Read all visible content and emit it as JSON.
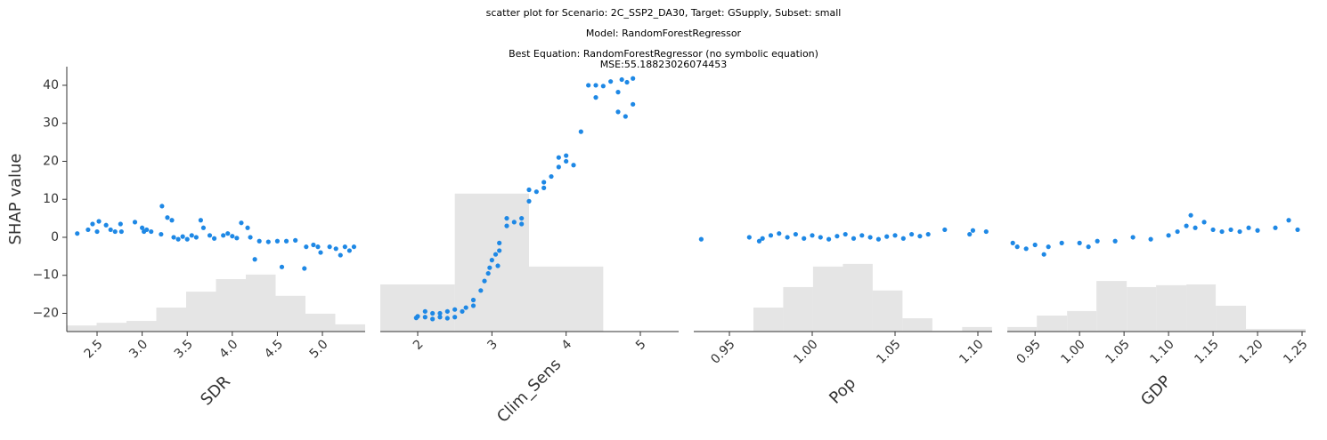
{
  "figure": {
    "title_lines": [
      "scatter plot for Scenario: 2C_SSP2_DA30, Target: GSupply, Subset: small",
      "Model: RandomForestRegressor",
      "Best Equation: RandomForestRegressor (no symbolic equation)",
      "MSE:55.18823026074453"
    ]
  },
  "chart_data": [
    {
      "type": "scatter",
      "xlabel": "SDR",
      "ylabel": "SHAP value",
      "color": "#1e88e5",
      "xlim": [
        2.164,
        5.474
      ],
      "ylim": [
        -24.8,
        44.9
      ],
      "xticks": [
        2.5,
        {
          "value": 3.0,
          "label": "3.0"
        },
        3.5,
        {
          "value": 4.0,
          "label": "4.0"
        },
        4.5,
        {
          "value": 5.0,
          "label": "5.0"
        }
      ],
      "yticks": [
        {
          "value": -20,
          "label": "−20"
        },
        {
          "value": -10,
          "label": "−10"
        },
        0,
        10,
        20,
        30,
        40
      ],
      "x": [
        2.28,
        2.4,
        2.45,
        2.5,
        2.52,
        2.6,
        2.65,
        2.7,
        2.76,
        2.77,
        2.92,
        3.0,
        3.02,
        3.05,
        3.1,
        3.22,
        3.21,
        3.28,
        3.33,
        3.35,
        3.4,
        3.45,
        3.5,
        3.55,
        3.6,
        3.65,
        3.68,
        3.75,
        3.8,
        3.9,
        3.95,
        4.0,
        4.05,
        4.1,
        4.17,
        4.2,
        4.25,
        4.3,
        4.4,
        4.5,
        4.55,
        4.6,
        4.7,
        4.8,
        4.82,
        4.9,
        4.95,
        4.98,
        5.08,
        5.15,
        5.2,
        5.25,
        5.3,
        5.35
      ],
      "values": [
        1,
        2,
        3.5,
        1.5,
        4.2,
        3.2,
        2,
        1.5,
        3.5,
        1.5,
        4,
        2.5,
        1.5,
        2,
        1.5,
        8.2,
        0.8,
        5.2,
        4.5,
        0,
        -0.5,
        0.2,
        -0.5,
        0.5,
        0,
        4.5,
        2.5,
        0.5,
        -0.3,
        0.5,
        1,
        0.3,
        -0.2,
        3.8,
        2.5,
        0,
        -5.8,
        -1,
        -1.2,
        -1,
        -7.8,
        -1,
        -0.8,
        -8.2,
        -2.5,
        -2,
        -2.5,
        -4,
        -2.5,
        -3,
        -4.7,
        -2.5,
        -3.5,
        -2.5
      ],
      "histogram": {
        "color": "#e5e5e5",
        "bins": [
          2.164,
          2.495,
          2.826,
          3.157,
          3.488,
          3.819,
          4.15,
          4.481,
          4.812,
          5.143,
          5.474
        ],
        "counts": [
          -23.2,
          -22.5,
          -22.0,
          -18.5,
          -14.3,
          -11.0,
          -9.8,
          -15.4,
          -20.1,
          -22.9
        ]
      }
    },
    {
      "type": "scatter",
      "xlabel": "Clim_Sens",
      "color": "#1e88e5",
      "xlim": [
        1.496,
        5.516
      ],
      "ylim": [
        -24.8,
        44.9
      ],
      "xticks": [
        2,
        3,
        4,
        5
      ],
      "x": [
        1.98,
        2.0,
        2.1,
        2.1,
        2.2,
        2.2,
        2.3,
        2.3,
        2.4,
        2.4,
        2.5,
        2.5,
        2.6,
        2.65,
        2.75,
        2.75,
        2.85,
        2.9,
        2.95,
        2.97,
        3.0,
        3.05,
        3.08,
        3.1,
        3.1,
        3.2,
        3.2,
        3.3,
        3.4,
        3.4,
        3.5,
        3.5,
        3.6,
        3.7,
        3.7,
        3.8,
        3.9,
        3.9,
        4.0,
        4.0,
        4.1,
        4.2,
        4.3,
        4.4,
        4.4,
        4.5,
        4.6,
        4.7,
        4.7,
        4.75,
        4.8,
        4.82,
        4.9,
        4.9
      ],
      "values": [
        -21.2,
        -20.8,
        -19.5,
        -21,
        -20,
        -21.5,
        -20,
        -21,
        -19.5,
        -21.3,
        -19,
        -21,
        -19.5,
        -18.5,
        -18,
        -16.5,
        -14,
        -11.5,
        -9.5,
        -8,
        -6,
        -4.5,
        -7.5,
        -3.5,
        -1.5,
        5,
        3,
        4,
        5,
        3.5,
        9.5,
        12.5,
        12,
        13,
        14.5,
        16,
        18.5,
        21,
        21.5,
        20,
        19,
        27.8,
        40,
        40,
        36.8,
        39.8,
        41,
        38.2,
        33,
        41.5,
        31.8,
        40.8,
        41.8,
        35
      ],
      "histogram": {
        "color": "#e5e5e5",
        "bins": [
          1.496,
          2.5,
          3.5,
          4.5,
          5.516
        ],
        "counts": [
          -12.4,
          11.5,
          -7.7,
          -24.8
        ]
      }
    },
    {
      "type": "scatter",
      "xlabel": "Pop",
      "color": "#1e88e5",
      "xlim": [
        0.9285,
        1.1086
      ],
      "ylim": [
        -24.8,
        44.9
      ],
      "xticks": [
        0.95,
        {
          "value": 1.0,
          "label": "1.00"
        },
        1.05,
        {
          "value": 1.1,
          "label": "1.10"
        }
      ],
      "x": [
        0.933,
        0.962,
        0.968,
        0.97,
        0.975,
        0.98,
        0.985,
        0.99,
        0.995,
        1.0,
        1.005,
        1.01,
        1.015,
        1.02,
        1.025,
        1.03,
        1.035,
        1.04,
        1.045,
        1.05,
        1.055,
        1.06,
        1.065,
        1.07,
        1.08,
        1.095,
        1.097,
        1.105
      ],
      "values": [
        -0.5,
        0,
        -1,
        -0.3,
        0.5,
        1,
        0,
        0.8,
        -0.3,
        0.5,
        0,
        -0.5,
        0.3,
        0.8,
        -0.3,
        0.5,
        0,
        -0.5,
        0.2,
        0.5,
        -0.3,
        0.8,
        0.3,
        0.8,
        2,
        0.8,
        1.8,
        1.5
      ],
      "histogram": {
        "color": "#e5e5e5",
        "bins": [
          0.9285,
          0.9465,
          0.9645,
          0.9825,
          1.0005,
          1.0185,
          1.0365,
          1.0545,
          1.0725,
          1.0905,
          1.1085
        ],
        "counts": [
          -24.6,
          -24.6,
          -18.5,
          -13.1,
          -7.7,
          -7.0,
          -14.0,
          -21.3,
          -24.6,
          -23.6
        ]
      }
    },
    {
      "type": "scatter",
      "xlabel": "GDP",
      "color": "#1e88e5",
      "xlim": [
        0.9188,
        1.254
      ],
      "ylim": [
        -24.8,
        44.9
      ],
      "xticks": [
        0.95,
        {
          "value": 1.0,
          "label": "1.00"
        },
        1.05,
        {
          "value": 1.1,
          "label": "1.10"
        },
        1.15,
        {
          "value": 1.2,
          "label": "1.20"
        },
        1.25
      ],
      "x": [
        0.925,
        0.93,
        0.94,
        0.95,
        0.96,
        0.965,
        0.98,
        1.0,
        1.01,
        1.02,
        1.04,
        1.06,
        1.08,
        1.1,
        1.11,
        1.12,
        1.125,
        1.13,
        1.14,
        1.15,
        1.16,
        1.17,
        1.18,
        1.19,
        1.2,
        1.22,
        1.235,
        1.245
      ],
      "values": [
        -1.5,
        -2.5,
        -3,
        -2,
        -4.5,
        -2.5,
        -1.5,
        -1.5,
        -2.5,
        -1,
        -1,
        0,
        -0.5,
        0.5,
        1.5,
        3,
        5.8,
        2.5,
        4,
        2,
        1.5,
        2,
        1.5,
        2.5,
        1.8,
        2.5,
        4.5,
        2
      ],
      "histogram": {
        "color": "#e5e5e5",
        "bins": [
          0.919,
          0.952,
          0.986,
          1.019,
          1.053,
          1.086,
          1.12,
          1.153,
          1.187,
          1.22,
          1.254
        ],
        "counts": [
          -23.6,
          -20.6,
          -19.4,
          -11.5,
          -13.1,
          -12.6,
          -12.4,
          -18.0,
          -24.1,
          -24.1
        ]
      }
    }
  ]
}
